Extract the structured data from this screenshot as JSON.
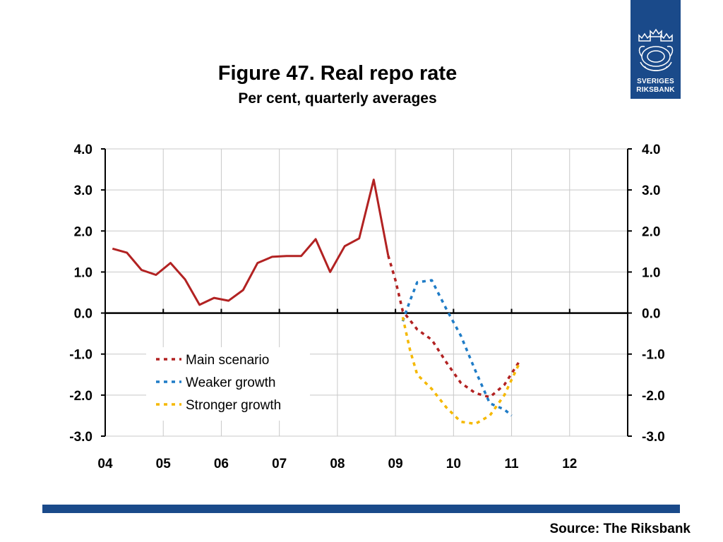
{
  "logo": {
    "line1": "SVERIGES",
    "line2": "RIKSBANK"
  },
  "title": "Figure 47. Real repo rate",
  "subtitle": "Per cent, quarterly averages",
  "source": "Source: The Riksbank",
  "colors": {
    "main": "#b22222",
    "weaker": "#1f7cc7",
    "stronger": "#f5b800",
    "grid": "#c8c8c8",
    "brand": "#1a4a8a"
  },
  "chart_data": {
    "type": "line",
    "title": "Figure 47. Real repo rate",
    "subtitle": "Per cent, quarterly averages",
    "x_axis": {
      "range": [
        2004.0,
        2013.0
      ],
      "tick_labels": [
        "04",
        "05",
        "06",
        "07",
        "08",
        "09",
        "10",
        "11",
        "12"
      ]
    },
    "y_axis": {
      "range": [
        -3.0,
        4.0
      ],
      "tick_labels": [
        "4.0",
        "3.0",
        "2.0",
        "1.0",
        "0.0",
        "-1.0",
        "-2.0",
        "-3.0"
      ],
      "mirrored_right": true
    },
    "grid": true,
    "legend_placement": "lower-left",
    "series": [
      {
        "name": "",
        "key": "outcome",
        "style": "solid",
        "color": "#b22222",
        "x": [
          2004.125,
          2004.375,
          2004.625,
          2004.875,
          2005.125,
          2005.375,
          2005.625,
          2005.875,
          2006.125,
          2006.375,
          2006.625,
          2006.875,
          2007.125,
          2007.375,
          2007.625,
          2007.875,
          2008.125,
          2008.375,
          2008.625,
          2008.875
        ],
        "y": [
          1.57,
          1.47,
          1.05,
          0.93,
          1.22,
          0.82,
          0.2,
          0.37,
          0.3,
          0.56,
          1.22,
          1.37,
          1.39,
          1.39,
          1.8,
          1.0,
          1.63,
          1.82,
          3.25,
          1.4
        ]
      },
      {
        "name": "Main scenario",
        "key": "main",
        "style": "dashed",
        "color": "#b22222",
        "x": [
          2008.875,
          2009.0,
          2009.125,
          2009.375,
          2009.625,
          2009.875,
          2010.125,
          2010.375,
          2010.625,
          2010.875,
          2011.125
        ],
        "y": [
          1.4,
          0.8,
          0.05,
          -0.4,
          -0.65,
          -1.2,
          -1.7,
          -1.95,
          -2.05,
          -1.75,
          -1.2
        ]
      },
      {
        "name": "Weaker growth",
        "key": "weaker",
        "style": "dashed",
        "color": "#1f7cc7",
        "x": [
          2009.125,
          2009.25,
          2009.375,
          2009.625,
          2009.875,
          2010.125,
          2010.375,
          2010.625,
          2010.875,
          2011.0
        ],
        "y": [
          -0.2,
          0.3,
          0.75,
          0.8,
          0.1,
          -0.55,
          -1.4,
          -2.2,
          -2.35,
          -2.5
        ]
      },
      {
        "name": "Stronger growth",
        "key": "stronger",
        "style": "dashed",
        "color": "#f5b800",
        "x": [
          2009.125,
          2009.25,
          2009.375,
          2009.625,
          2009.875,
          2010.125,
          2010.375,
          2010.625,
          2010.875,
          2011.125
        ],
        "y": [
          -0.1,
          -0.9,
          -1.5,
          -1.85,
          -2.3,
          -2.65,
          -2.7,
          -2.5,
          -2.0,
          -1.25
        ]
      }
    ]
  }
}
